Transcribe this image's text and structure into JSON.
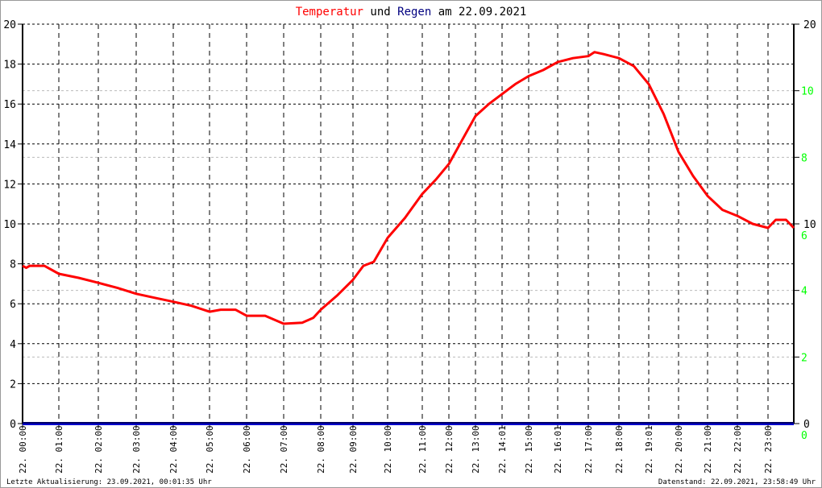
{
  "chart_data": {
    "type": "line",
    "title_parts": [
      {
        "text": "Temperatur",
        "color": "#ff0000"
      },
      {
        "text": " und ",
        "color": "#000000"
      },
      {
        "text": "Regen",
        "color": "#000080"
      },
      {
        "text": " am 22.09.2021",
        "color": "#000000"
      }
    ],
    "left_axis": {
      "ylim": [
        0,
        20
      ],
      "ticks": [
        0,
        2,
        4,
        6,
        8,
        10,
        12,
        14,
        16,
        18,
        20
      ]
    },
    "right_axis": {
      "ylim": [
        0,
        20
      ],
      "black_ticks": [
        0,
        10,
        20
      ],
      "green_ticks": [
        0,
        2,
        4,
        6,
        8,
        10
      ],
      "green_color": "#00ff00"
    },
    "x_tick_labels": [
      "22. 00:00",
      "22. 01:00",
      "22. 02:00",
      "22. 03:00",
      "22. 04:00",
      "22. 05:00",
      "22. 06:00",
      "22. 07:00",
      "22. 08:00",
      "22. 09:00",
      "22. 10:00",
      "22. 11:00",
      "22. 12:00",
      "22. 13:00",
      "22. 14:01",
      "22. 15:00",
      "22. 16:01",
      "22. 17:00",
      "22. 18:00",
      "22. 19:01",
      "22. 20:00",
      "22. 21:00",
      "22. 22:00",
      "22. 23:00"
    ],
    "grid": true,
    "series": [
      {
        "name": "Temperatur",
        "color": "#ff0000",
        "x_hours": [
          0,
          0.1,
          0.2,
          0.6,
          1,
          1.5,
          2,
          2.5,
          3,
          3.5,
          4,
          4.5,
          5,
          5.3,
          5.7,
          6,
          6.5,
          7,
          7.5,
          7.8,
          8,
          8.5,
          9,
          9.3,
          9.6,
          10,
          10.5,
          11,
          11.5,
          12,
          12.5,
          13,
          13.5,
          14,
          14.5,
          15,
          15.5,
          16,
          16.5,
          17,
          17.2,
          17.5,
          18,
          18.5,
          19,
          19.5,
          20,
          20.5,
          21,
          21.5,
          22,
          22.5,
          23,
          23.3,
          23.7,
          24
        ],
        "values": [
          7.9,
          7.8,
          7.9,
          7.9,
          7.5,
          7.3,
          7.05,
          6.8,
          6.5,
          6.3,
          6.1,
          5.9,
          5.6,
          5.7,
          5.7,
          5.4,
          5.4,
          5.0,
          5.05,
          5.3,
          5.7,
          6.4,
          7.2,
          7.9,
          8.1,
          9.3,
          10.3,
          11.5,
          12.2,
          13.0,
          14.2,
          15.4,
          16.0,
          16.5,
          17.0,
          17.4,
          17.7,
          18.1,
          18.3,
          18.4,
          18.6,
          18.5,
          18.3,
          17.9,
          17.0,
          15.5,
          13.6,
          12.4,
          11.4,
          10.7,
          10.4,
          10.0,
          9.8,
          10.2,
          10.2,
          9.8
        ]
      },
      {
        "name": "Regen",
        "color": "#0000cc",
        "x_hours": [
          0,
          24
        ],
        "values": [
          0,
          0
        ]
      }
    ]
  },
  "footer": {
    "left": "Letzte Aktualisierung: 23.09.2021, 00:01:35 Uhr",
    "right": "Datenstand: 22.09.2021, 23:58:49 Uhr"
  }
}
